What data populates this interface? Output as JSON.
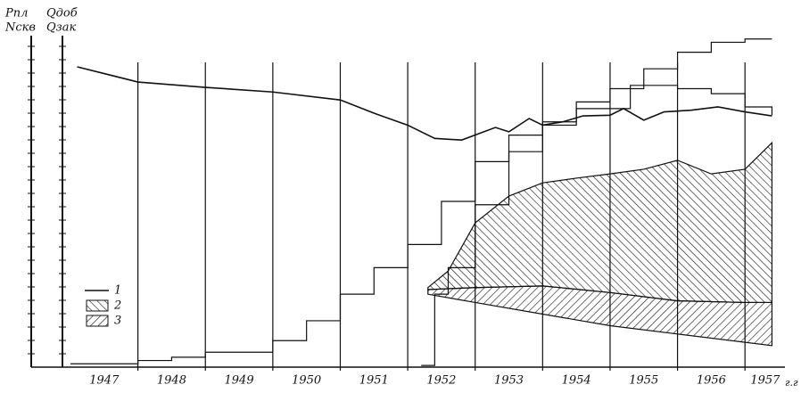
{
  "chart_data": {
    "type": "line",
    "y_labels": [
      [
        "Pпл",
        "Nскв"
      ],
      [
        "Qдоб",
        "Qзак"
      ]
    ],
    "x_unit": "г.г",
    "xlim": [
      1947,
      1957.5
    ],
    "ylim": [
      0,
      100
    ],
    "xticks": [
      {
        "value": 1947.5,
        "label": "1947"
      },
      {
        "value": 1948.5,
        "label": "1948"
      },
      {
        "value": 1949.5,
        "label": "1949"
      },
      {
        "value": 1950.5,
        "label": "1950"
      },
      {
        "value": 1951.5,
        "label": "1951"
      },
      {
        "value": 1952.5,
        "label": "1952"
      },
      {
        "value": 1953.5,
        "label": "1953"
      },
      {
        "value": 1954.5,
        "label": "1954"
      },
      {
        "value": 1955.5,
        "label": "1955"
      },
      {
        "value": 1956.5,
        "label": "1956"
      },
      {
        "value": 1957.3,
        "label": "1957"
      }
    ],
    "xgrid": [
      1948,
      1949,
      1950,
      1951,
      1952,
      1953,
      1954,
      1955,
      1956,
      1957
    ],
    "color": "#111111",
    "legend": "lower left",
    "series": [
      {
        "name": "1",
        "kind": "line",
        "x": [
          1947.1,
          1948,
          1949,
          1950,
          1951,
          1951.5,
          1952,
          1952.4,
          1952.8,
          1953.3,
          1953.5,
          1953.8,
          1954,
          1954.3,
          1954.6,
          1955,
          1955.2,
          1955.5,
          1955.8,
          1956.2,
          1956.6,
          1957,
          1957.4
        ],
        "values": [
          90.6,
          86,
          84.4,
          83,
          80.6,
          76.6,
          73,
          69,
          68.5,
          72.3,
          71,
          75,
          73,
          74,
          75.8,
          76,
          78,
          74.5,
          77,
          77.5,
          78.5,
          77,
          75.8
        ]
      },
      {
        "name": "2",
        "kind": "area",
        "hatch": "back",
        "base": "3",
        "x": [
          1952.3,
          1952.6,
          1953,
          1953.5,
          1954,
          1954.5,
          1955,
          1955.5,
          1956,
          1956.5,
          1957,
          1957.4
        ],
        "values": [
          24,
          29,
          43.5,
          51.6,
          55.6,
          57,
          58.3,
          59.7,
          62.4,
          58.3,
          59.7,
          67.7
        ]
      },
      {
        "name": "3",
        "kind": "area",
        "hatch": "forward",
        "x": [
          1952.3,
          1953,
          1954,
          1955,
          1956,
          1957,
          1957.4
        ],
        "values": [
          23.4,
          24,
          24.5,
          22.5,
          20,
          19.5,
          19.5
        ],
        "lower": [
          22,
          19.5,
          16,
          12.5,
          10,
          7.5,
          6.5
        ]
      },
      {
        "kind": "step",
        "x": [
          1947,
          1948,
          1948.5,
          1949,
          1950,
          1950.5,
          1951,
          1951.5,
          1952,
          1952.5,
          1953,
          1953.5,
          1954,
          1954.5,
          1955,
          1955.5,
          1956,
          1956.5,
          1957,
          1957.4
        ],
        "values": [
          1,
          2,
          3,
          4.5,
          8,
          14,
          22,
          30,
          37,
          50,
          62,
          70,
          74,
          80,
          84,
          90,
          95,
          98,
          99,
          99
        ]
      },
      {
        "kind": "step",
        "x": [
          1952.2,
          1952.4,
          1952.6,
          1953,
          1953.5,
          1954,
          1954.5,
          1955.3,
          1956,
          1956.5,
          1957,
          1957.4
        ],
        "values": [
          0.5,
          22,
          30,
          49,
          65,
          73,
          78,
          85,
          84,
          82.5,
          78.5,
          76
        ]
      }
    ]
  }
}
